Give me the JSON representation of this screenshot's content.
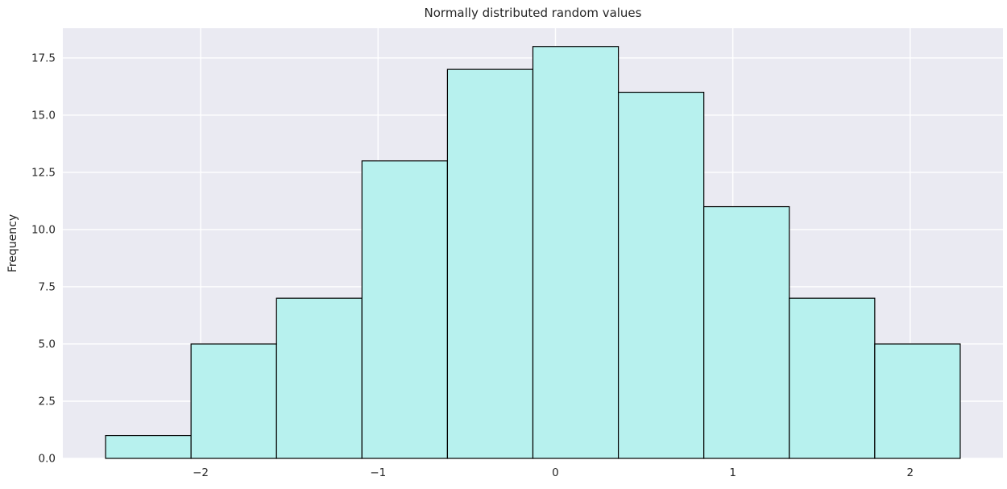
{
  "chart_data": {
    "type": "bar",
    "subtype": "histogram",
    "title": "Normally distributed random values",
    "xlabel": "",
    "ylabel": "Frequency",
    "bin_start": -2.536,
    "bin_width": 0.4818,
    "counts": [
      1,
      5,
      7,
      13,
      17,
      18,
      16,
      11,
      7,
      5
    ],
    "total_samples": 100,
    "xlim": [
      -2.777,
      2.523
    ],
    "ylim": [
      0,
      18.8
    ],
    "x_ticks": [
      -2,
      -1,
      0,
      1,
      2
    ],
    "x_tick_labels": [
      "−2",
      "−1",
      "0",
      "1",
      "2"
    ],
    "y_ticks": [
      0.0,
      2.5,
      5.0,
      7.5,
      10.0,
      12.5,
      15.0,
      17.5
    ],
    "y_tick_labels": [
      "0.0",
      "2.5",
      "5.0",
      "7.5",
      "10.0",
      "12.5",
      "15.0",
      "17.5"
    ],
    "grid": true,
    "legend_position": "none",
    "colors": {
      "bar_fill": "#b7f1ee",
      "bar_edge": "#000000",
      "plot_background": "#eaeaf2",
      "grid_line": "#ffffff",
      "figure_background": "#ffffff",
      "text": "#262626"
    }
  }
}
